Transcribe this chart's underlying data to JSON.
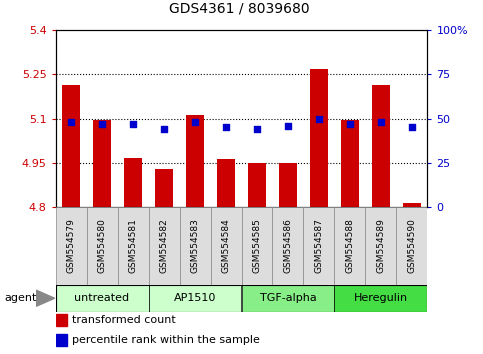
{
  "title": "GDS4361 / 8039680",
  "samples": [
    "GSM554579",
    "GSM554580",
    "GSM554581",
    "GSM554582",
    "GSM554583",
    "GSM554584",
    "GSM554585",
    "GSM554586",
    "GSM554587",
    "GSM554588",
    "GSM554589",
    "GSM554590"
  ],
  "red_values": [
    5.215,
    5.095,
    4.968,
    4.928,
    5.112,
    4.962,
    4.948,
    4.948,
    5.268,
    5.095,
    5.215,
    4.815
  ],
  "blue_values": [
    48,
    47,
    47,
    44,
    48,
    45,
    44,
    46,
    50,
    47,
    48,
    45
  ],
  "ylim_left": [
    4.8,
    5.4
  ],
  "ylim_right": [
    0,
    100
  ],
  "yticks_left": [
    4.8,
    4.95,
    5.1,
    5.25,
    5.4
  ],
  "yticks_right": [
    0,
    25,
    50,
    75,
    100
  ],
  "ytick_labels_left": [
    "4.8",
    "4.95",
    "5.1",
    "5.25",
    "5.4"
  ],
  "ytick_labels_right": [
    "0",
    "25",
    "50",
    "75",
    "100%"
  ],
  "hlines": [
    4.95,
    5.1,
    5.25
  ],
  "groups": [
    {
      "label": "untreated",
      "start": 0,
      "end": 2,
      "color": "#ccffcc"
    },
    {
      "label": "AP1510",
      "start": 3,
      "end": 5,
      "color": "#ccffcc"
    },
    {
      "label": "TGF-alpha",
      "start": 6,
      "end": 8,
      "color": "#88ee88"
    },
    {
      "label": "Heregulin",
      "start": 9,
      "end": 11,
      "color": "#44dd44"
    }
  ],
  "agent_label": "agent",
  "bar_color": "#cc0000",
  "dot_color": "#0000cc",
  "legend": [
    {
      "color": "#cc0000",
      "label": "transformed count"
    },
    {
      "color": "#0000cc",
      "label": "percentile rank within the sample"
    }
  ],
  "bar_width": 0.6,
  "bg_color": "#dddddd"
}
